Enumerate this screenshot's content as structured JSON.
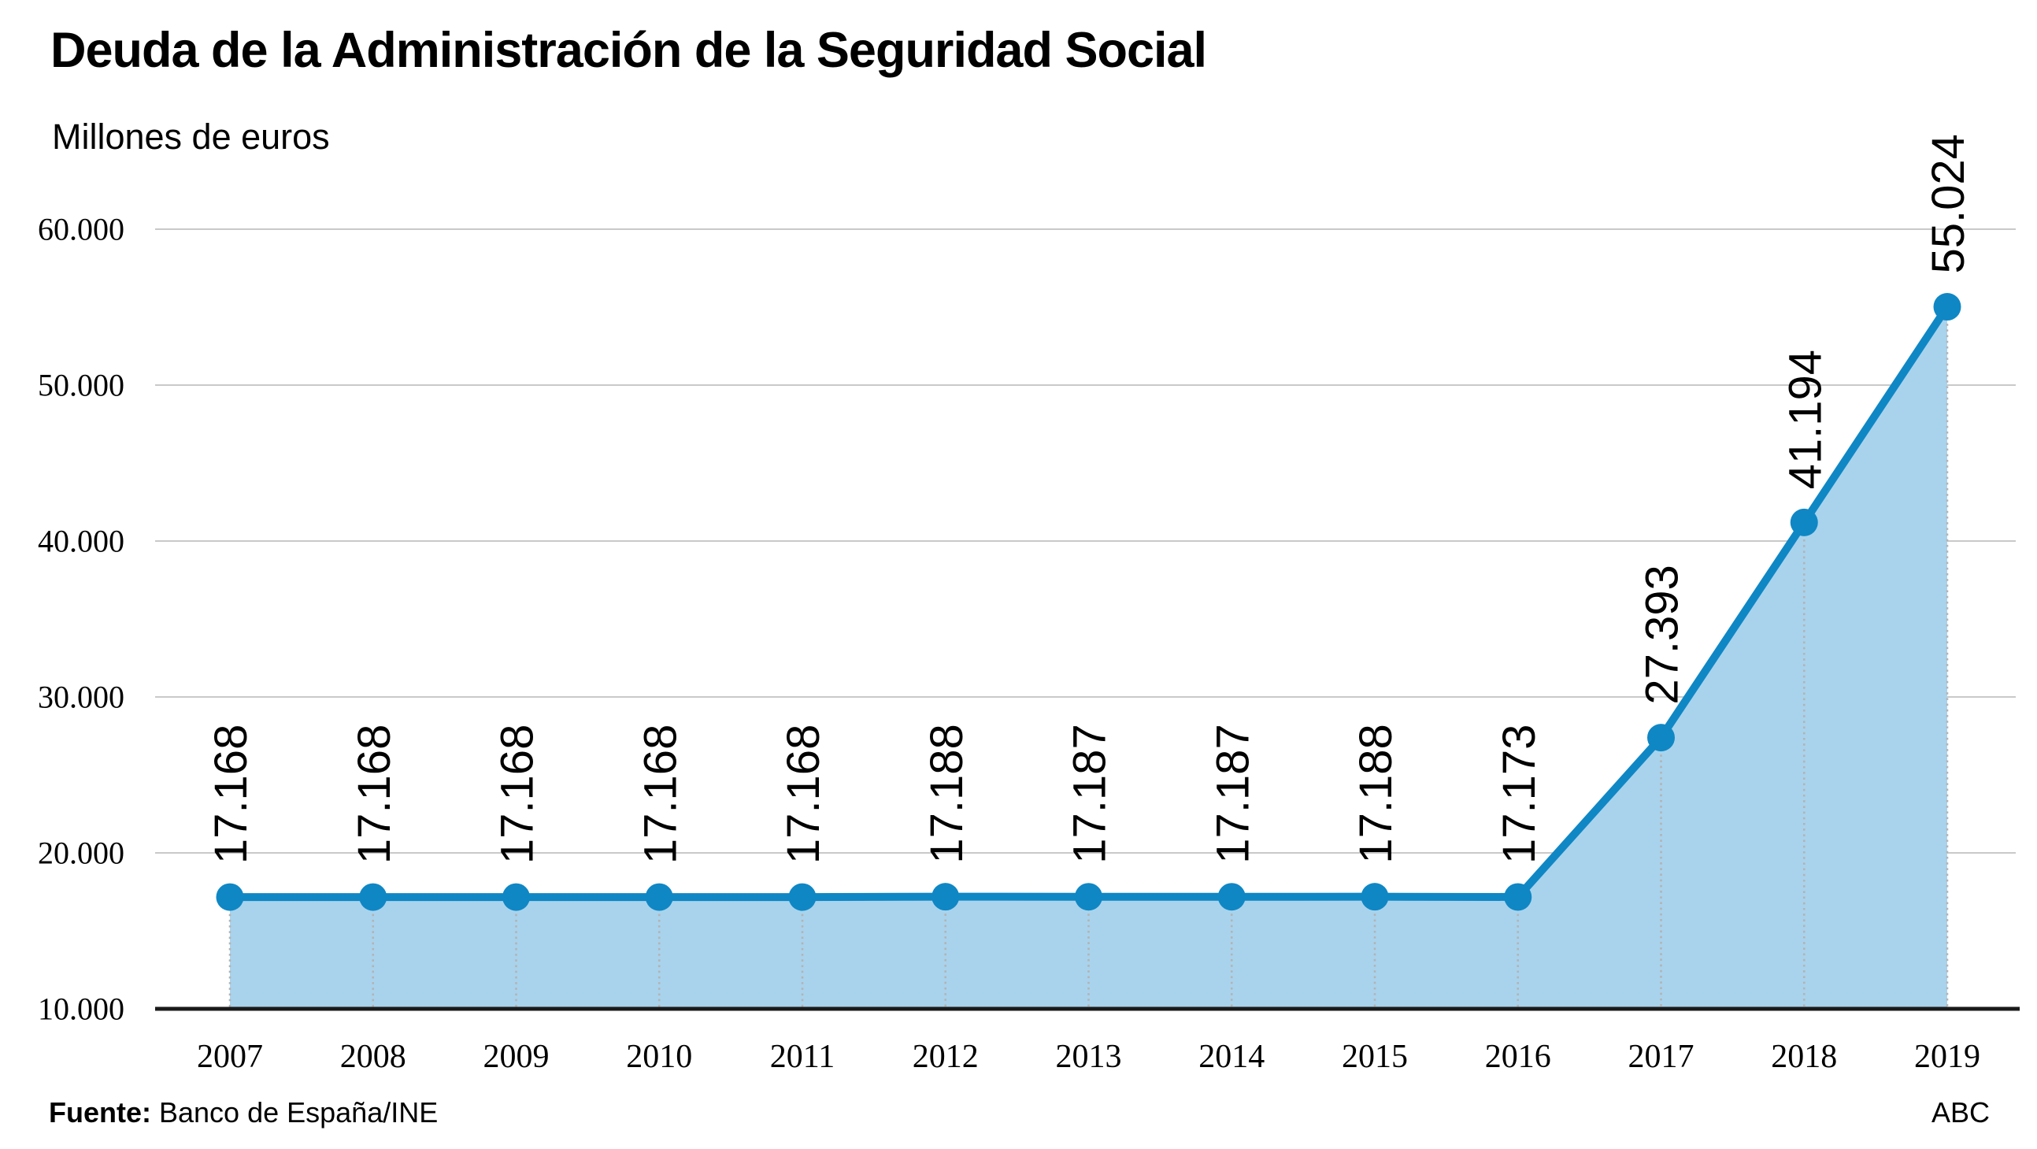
{
  "header": {
    "title": "Deuda de la Administración de la Seguridad Social",
    "subtitle": "Millones de euros"
  },
  "footer": {
    "source_label": "Fuente:",
    "source_text": " Banco de España/INE",
    "credit": "ABC"
  },
  "chart_data": {
    "type": "area",
    "title": "Deuda de la Administración de la Seguridad Social",
    "subtitle": "Millones de euros",
    "xlabel": "",
    "ylabel": "Millones de euros",
    "categories": [
      "2007",
      "2008",
      "2009",
      "2010",
      "2011",
      "2012",
      "2013",
      "2014",
      "2015",
      "2016",
      "2017",
      "2018",
      "2019"
    ],
    "values": [
      17168,
      17168,
      17168,
      17168,
      17168,
      17188,
      17187,
      17187,
      17188,
      17173,
      27393,
      41194,
      55024
    ],
    "value_labels": [
      "17.168",
      "17.168",
      "17.168",
      "17.168",
      "17.168",
      "17.188",
      "17.187",
      "17.187",
      "17.188",
      "17.173",
      "27.393",
      "41.194",
      "55.024"
    ],
    "ylim": [
      10000,
      60000
    ],
    "ytick_interval": 10000,
    "yticks": [
      10000,
      20000,
      30000,
      40000,
      50000,
      60000
    ],
    "ytick_labels": [
      "10.000",
      "20.000",
      "30.000",
      "40.000",
      "50.000",
      "60.000"
    ],
    "grid": true,
    "legend": "none",
    "colors": {
      "line": "#0F87C5",
      "fill": "#A9D3EC",
      "grid": "#C9C9C9",
      "axis": "#1A1A1A",
      "guide_dots": "#B3B3B3",
      "text": "#000000"
    }
  }
}
